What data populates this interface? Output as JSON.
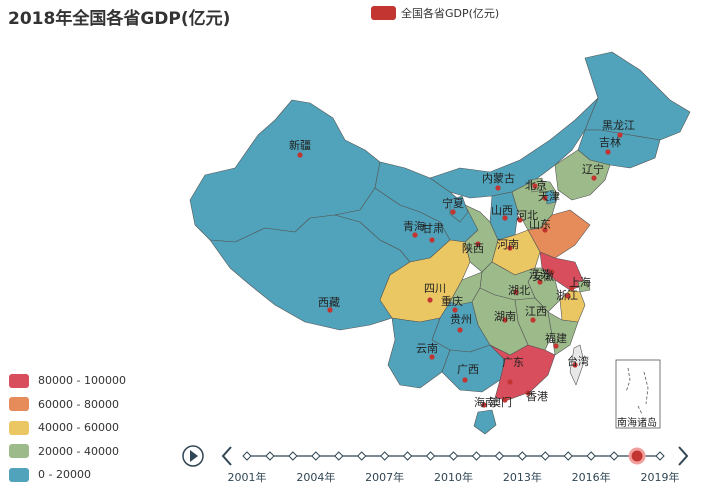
{
  "title": "2018年全国各省GDP(亿元)",
  "legend": {
    "series_name": "全国各省GDP(亿元)",
    "color": "#c23531"
  },
  "visual_map": [
    {
      "label": "80000 - 100000",
      "color": "#d94e5d"
    },
    {
      "label": "60000 - 80000",
      "color": "#e68b5a"
    },
    {
      "label": "40000 - 60000",
      "color": "#eac763"
    },
    {
      "label": "20000 - 40000",
      "color": "#9dbb8a"
    },
    {
      "label": "0 - 20000",
      "color": "#50a3ba"
    }
  ],
  "provinces": [
    {
      "name": "新疆",
      "range": "0 - 20000"
    },
    {
      "name": "西藏",
      "range": "0 - 20000"
    },
    {
      "name": "青海",
      "range": "0 - 20000"
    },
    {
      "name": "甘肃",
      "range": "0 - 20000"
    },
    {
      "name": "宁夏",
      "range": "0 - 20000"
    },
    {
      "name": "内蒙古",
      "range": "0 - 20000"
    },
    {
      "name": "黑龙江",
      "range": "0 - 20000"
    },
    {
      "name": "吉林",
      "range": "0 - 20000"
    },
    {
      "name": "辽宁",
      "range": "20000 - 40000"
    },
    {
      "name": "北京",
      "range": "20000 - 40000"
    },
    {
      "name": "天津",
      "range": "0 - 20000"
    },
    {
      "name": "河北",
      "range": "20000 - 40000"
    },
    {
      "name": "山西",
      "range": "0 - 20000"
    },
    {
      "name": "山东",
      "range": "60000 - 80000"
    },
    {
      "name": "陕西",
      "range": "20000 - 40000"
    },
    {
      "name": "河南",
      "range": "40000 - 60000"
    },
    {
      "name": "江苏",
      "range": "80000 - 100000"
    },
    {
      "name": "安徽",
      "range": "20000 - 40000"
    },
    {
      "name": "上海",
      "range": "20000 - 40000"
    },
    {
      "name": "湖北",
      "range": "20000 - 40000"
    },
    {
      "name": "浙江",
      "range": "40000 - 60000"
    },
    {
      "name": "四川",
      "range": "40000 - 60000"
    },
    {
      "name": "重庆",
      "range": "20000 - 40000"
    },
    {
      "name": "江西",
      "range": "20000 - 40000"
    },
    {
      "name": "湖南",
      "range": "20000 - 40000"
    },
    {
      "name": "福建",
      "range": "20000 - 40000"
    },
    {
      "name": "贵州",
      "range": "0 - 20000"
    },
    {
      "name": "云南",
      "range": "0 - 20000"
    },
    {
      "name": "广西",
      "range": "0 - 20000"
    },
    {
      "name": "广东",
      "range": "80000 - 100000"
    },
    {
      "name": "台湾",
      "range": ""
    },
    {
      "name": "香港",
      "range": ""
    },
    {
      "name": "澳门",
      "range": ""
    },
    {
      "name": "海南",
      "range": "0 - 20000"
    }
  ],
  "inset_label": "南海诸岛",
  "timeline": {
    "labels": [
      "2001年",
      "2004年",
      "2007年",
      "2010年",
      "2013年",
      "2016年",
      "2019年"
    ],
    "years": [
      2001,
      2002,
      2003,
      2004,
      2005,
      2006,
      2007,
      2008,
      2009,
      2010,
      2011,
      2012,
      2013,
      2014,
      2015,
      2016,
      2017,
      2018,
      2019
    ],
    "current": 2018
  }
}
